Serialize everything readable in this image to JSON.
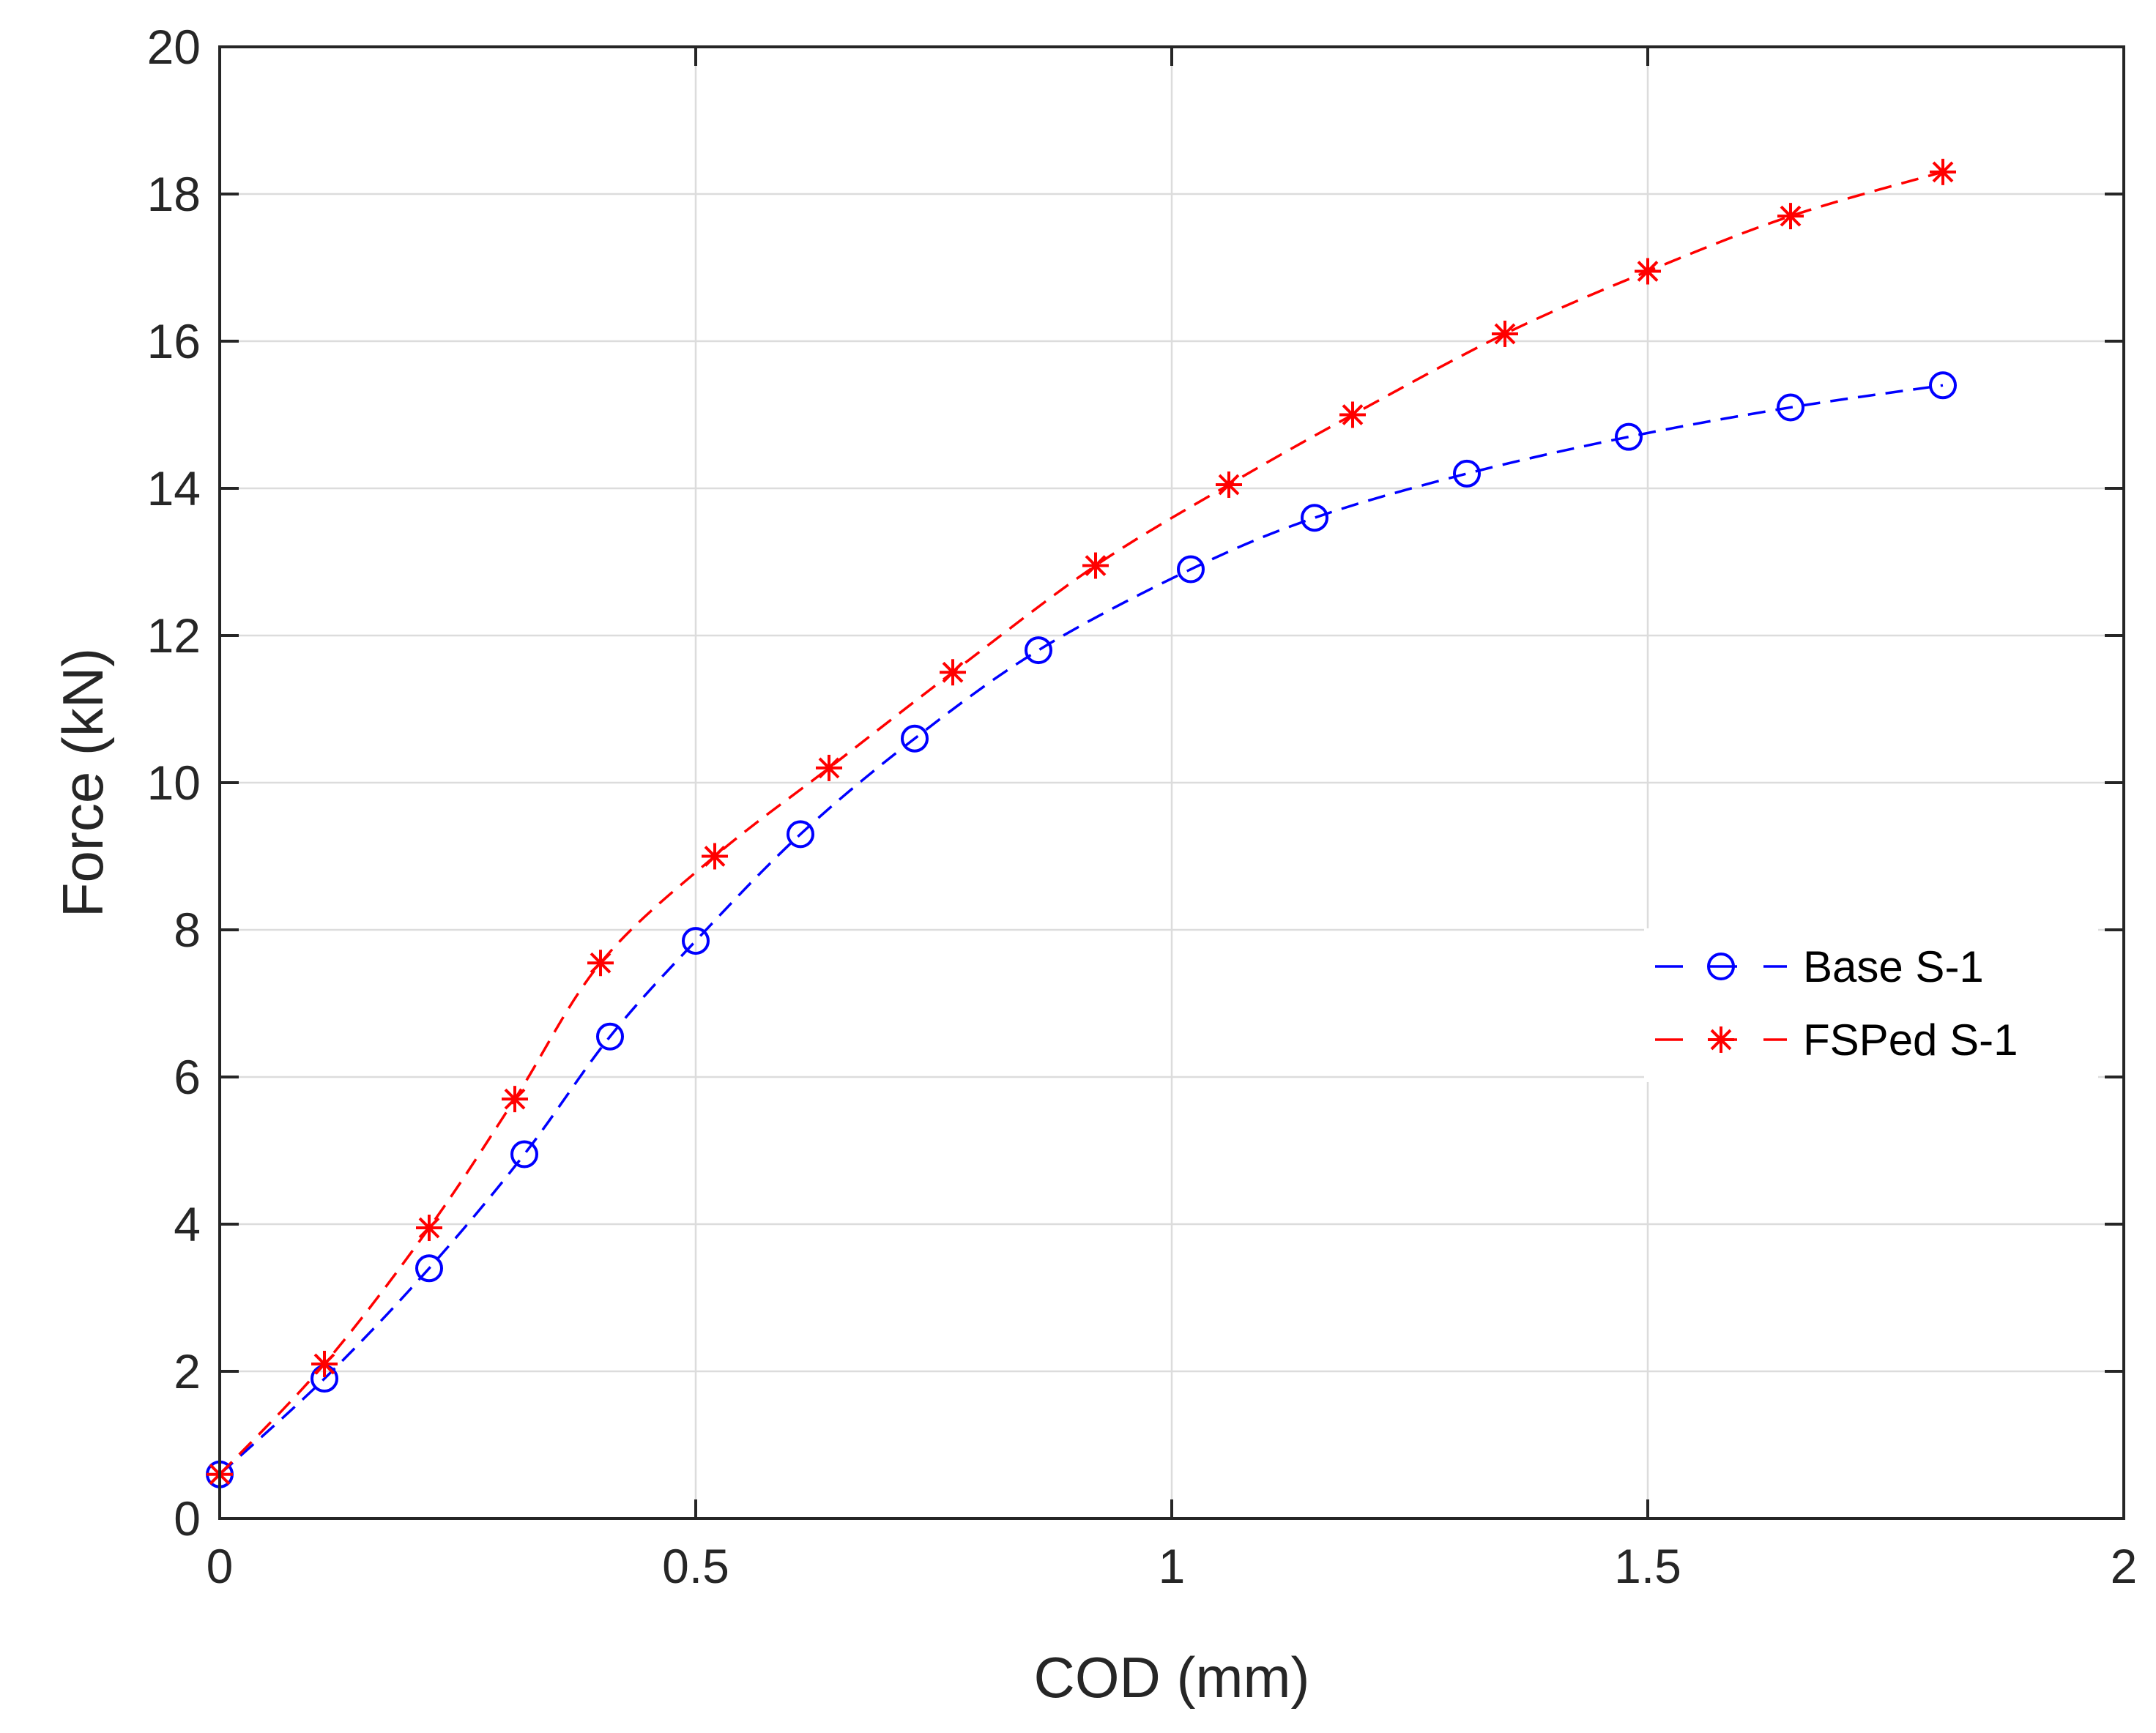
{
  "chart_data": {
    "type": "line",
    "title": "",
    "xlabel": "COD (mm)",
    "ylabel": "Force (kN)",
    "xlim": [
      0,
      2
    ],
    "ylim": [
      0,
      20
    ],
    "xticks": [
      0,
      0.5,
      1,
      1.5,
      2
    ],
    "xtick_labels": [
      "0",
      "0.5",
      "1",
      "1.5",
      "2"
    ],
    "yticks": [
      0,
      2,
      4,
      6,
      8,
      10,
      12,
      14,
      16,
      18,
      20
    ],
    "ytick_labels": [
      "0",
      "2",
      "4",
      "6",
      "8",
      "10",
      "12",
      "14",
      "16",
      "18",
      "20"
    ],
    "grid": true,
    "legend_position": "right",
    "series": [
      {
        "name": "Base S-1",
        "color": "#0000ff",
        "marker": "circle",
        "line": "dashed",
        "x": [
          0.0,
          0.11,
          0.22,
          0.32,
          0.41,
          0.5,
          0.61,
          0.73,
          0.86,
          1.02,
          1.15,
          1.31,
          1.48,
          1.65,
          1.81
        ],
        "y": [
          0.6,
          1.9,
          3.4,
          4.95,
          6.55,
          7.85,
          9.3,
          10.6,
          11.8,
          12.9,
          13.6,
          14.2,
          14.7,
          15.1,
          15.4
        ]
      },
      {
        "name": "FSPed S-1",
        "color": "#ff0000",
        "marker": "asterisk",
        "line": "dashed",
        "x": [
          0.0,
          0.11,
          0.22,
          0.31,
          0.4,
          0.52,
          0.64,
          0.77,
          0.92,
          1.06,
          1.19,
          1.35,
          1.5,
          1.65,
          1.81
        ],
        "y": [
          0.6,
          2.1,
          3.95,
          5.7,
          7.55,
          9.0,
          10.2,
          11.5,
          12.95,
          14.05,
          15.0,
          16.1,
          16.95,
          17.7,
          18.3
        ]
      }
    ]
  }
}
